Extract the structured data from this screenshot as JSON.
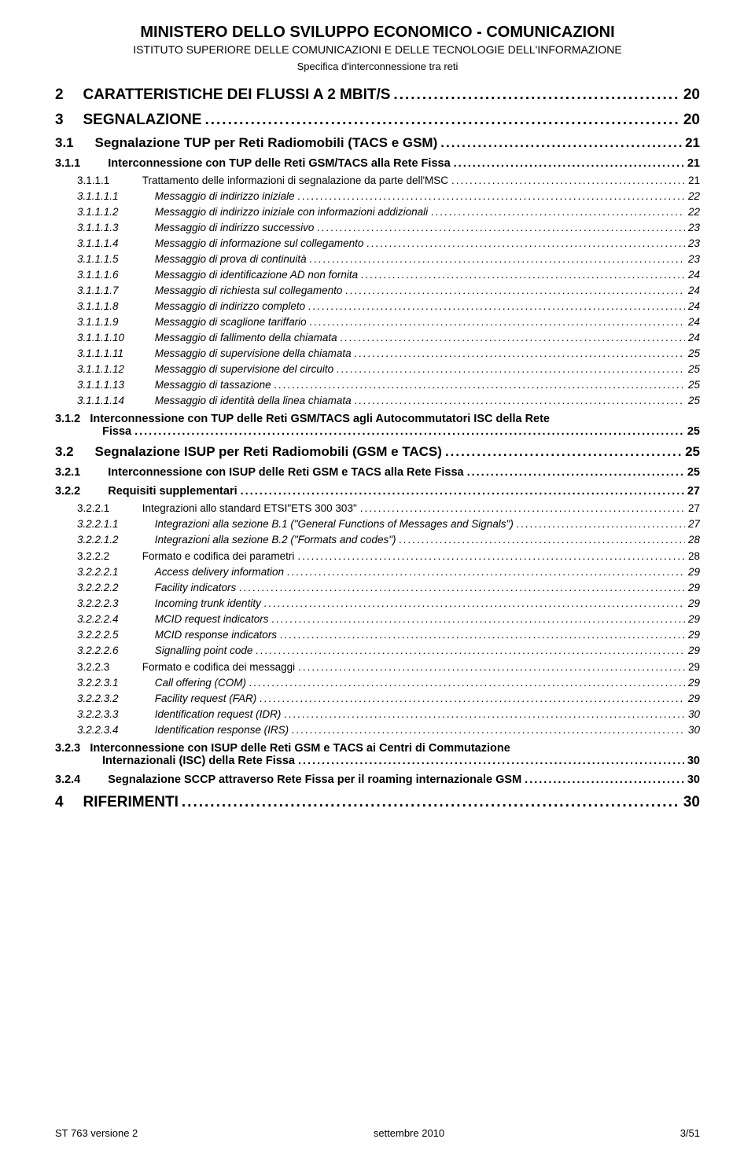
{
  "header": {
    "title": "MINISTERO DELLO SVILUPPO ECONOMICO - COMUNICAZIONI",
    "subtitle": "ISTITUTO SUPERIORE DELLE COMUNICAZIONI E DELLE TECNOLOGIE DELL'INFORMAZIONE",
    "spec": "Specifica d'interconnessione tra reti"
  },
  "toc": [
    {
      "level": 0,
      "num": "2",
      "title": "CARATTERISTICHE DEI FLUSSI A 2 MBIT/S",
      "page": "20"
    },
    {
      "level": 0,
      "num": "3",
      "title": "SEGNALAZIONE",
      "page": "20"
    },
    {
      "level": 1,
      "num": "3.1",
      "title": "Segnalazione TUP per Reti Radiomobili (TACS e GSM)",
      "page": "21"
    },
    {
      "level": 2,
      "num": "3.1.1",
      "title": "Interconnessione con TUP delle Reti GSM/TACS alla Rete Fissa",
      "page": "21"
    },
    {
      "level": 3,
      "num": "3.1.1.1",
      "title": "Trattamento delle informazioni di segnalazione da parte dell'MSC",
      "page": "21"
    },
    {
      "level": 4,
      "num": "3.1.1.1.1",
      "title": "Messaggio di indirizzo iniziale",
      "page": "22"
    },
    {
      "level": 4,
      "num": "3.1.1.1.2",
      "title": "Messaggio di indirizzo iniziale con informazioni addizionali",
      "page": "22"
    },
    {
      "level": 4,
      "num": "3.1.1.1.3",
      "title": "Messaggio di indirizzo successivo",
      "page": "23"
    },
    {
      "level": 4,
      "num": "3.1.1.1.4",
      "title": "Messaggio di informazione sul collegamento",
      "page": "23"
    },
    {
      "level": 4,
      "num": "3.1.1.1.5",
      "title": "Messaggio di prova di continuità",
      "page": "23"
    },
    {
      "level": 4,
      "num": "3.1.1.1.6",
      "title": "Messaggio di identificazione AD non fornita",
      "page": "24"
    },
    {
      "level": 4,
      "num": "3.1.1.1.7",
      "title": "Messaggio di richiesta sul collegamento",
      "page": "24"
    },
    {
      "level": 4,
      "num": "3.1.1.1.8",
      "title": "Messaggio di indirizzo completo",
      "page": "24"
    },
    {
      "level": 4,
      "num": "3.1.1.1.9",
      "title": "Messaggio di scaglione tariffario",
      "page": "24"
    },
    {
      "level": 4,
      "num": "3.1.1.1.10",
      "title": "Messaggio di fallimento della chiamata",
      "page": "24"
    },
    {
      "level": 4,
      "num": "3.1.1.1.11",
      "title": "Messaggio di supervisione della chiamata",
      "page": "25"
    },
    {
      "level": 4,
      "num": "3.1.1.1.12",
      "title": "Messaggio di supervisione del circuito",
      "page": "25"
    },
    {
      "level": 4,
      "num": "3.1.1.1.13",
      "title": "Messaggio di tassazione",
      "page": "25"
    },
    {
      "level": 4,
      "num": "3.1.1.1.14",
      "title": "Messaggio di identità della linea chiamata",
      "page": "25"
    },
    {
      "level": 2,
      "num": "3.1.2",
      "title_lines": [
        "Interconnessione con TUP delle Reti GSM/TACS agli Autocommutatori ISC della Rete",
        "Fissa"
      ],
      "page": "25"
    },
    {
      "level": 1,
      "num": "3.2",
      "title": "Segnalazione ISUP per Reti Radiomobili (GSM e TACS)",
      "page": "25"
    },
    {
      "level": 2,
      "num": "3.2.1",
      "title": "Interconnessione con ISUP delle Reti GSM e TACS alla Rete Fissa",
      "page": "25"
    },
    {
      "level": 2,
      "num": "3.2.2",
      "title": "Requisiti supplementari",
      "page": "27"
    },
    {
      "level": 3,
      "num": "3.2.2.1",
      "title": "Integrazioni allo standard ETSI\"ETS 300 303\"",
      "page": "27"
    },
    {
      "level": 4,
      "num": "3.2.2.1.1",
      "title": "Integrazioni alla sezione B.1 (\"General Functions of Messages and Signals\")",
      "page": "27"
    },
    {
      "level": 4,
      "num": "3.2.2.1.2",
      "title": "Integrazioni alla sezione B.2 (\"Formats and codes\")",
      "page": "28"
    },
    {
      "level": 3,
      "num": "3.2.2.2",
      "title": "Formato e codifica dei parametri",
      "page": "28"
    },
    {
      "level": 4,
      "num": "3.2.2.2.1",
      "title": "Access delivery information",
      "page": "29"
    },
    {
      "level": 4,
      "num": "3.2.2.2.2",
      "title": "Facility indicators",
      "page": "29"
    },
    {
      "level": 4,
      "num": "3.2.2.2.3",
      "title": "Incoming trunk identity",
      "page": "29"
    },
    {
      "level": 4,
      "num": "3.2.2.2.4",
      "title": "MCID request indicators",
      "page": "29"
    },
    {
      "level": 4,
      "num": "3.2.2.2.5",
      "title": "MCID response indicators",
      "page": "29"
    },
    {
      "level": 4,
      "num": "3.2.2.2.6",
      "title": "Signalling point code",
      "page": "29"
    },
    {
      "level": 3,
      "num": "3.2.2.3",
      "title": "Formato e codifica dei messaggi",
      "page": "29"
    },
    {
      "level": 4,
      "num": "3.2.2.3.1",
      "title": "Call offering (COM)",
      "page": "29"
    },
    {
      "level": 4,
      "num": "3.2.2.3.2",
      "title": "Facility request (FAR)",
      "page": "29"
    },
    {
      "level": 4,
      "num": "3.2.2.3.3",
      "title": "Identification request (IDR)",
      "page": "30"
    },
    {
      "level": 4,
      "num": "3.2.2.3.4",
      "title": "Identification response (IRS)",
      "page": "30"
    },
    {
      "level": 2,
      "num": "3.2.3",
      "title_lines": [
        "Interconnessione con ISUP delle Reti GSM e TACS ai Centri di Commutazione",
        "Internazionali (ISC) della Rete Fissa"
      ],
      "page": "30"
    },
    {
      "level": 2,
      "num": "3.2.4",
      "title": "Segnalazione SCCP attraverso Rete Fissa per il roaming internazionale GSM",
      "page": "30"
    },
    {
      "level": 0,
      "num": "4",
      "title": "RIFERIMENTI",
      "page": "30"
    }
  ],
  "footer": {
    "left": "ST 763 versione 2",
    "center": "settembre 2010",
    "right": "3/51"
  }
}
